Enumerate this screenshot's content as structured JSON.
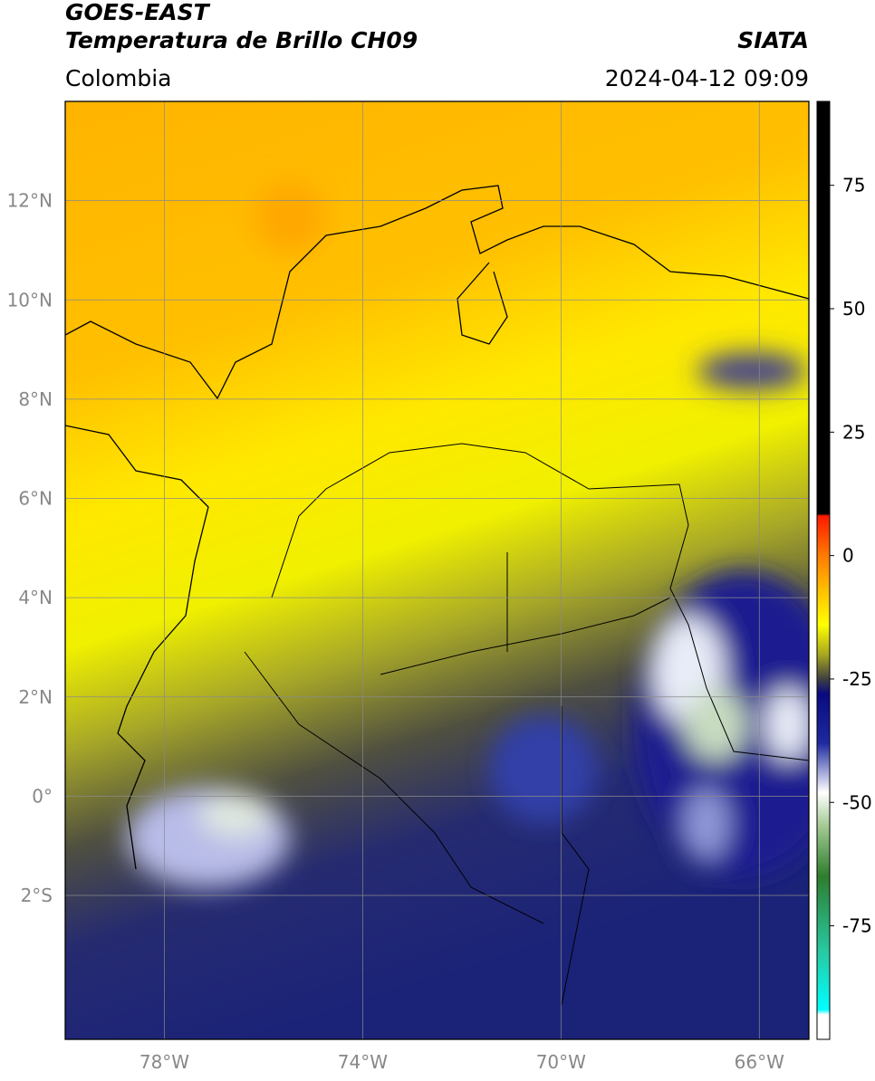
{
  "header": {
    "title": "GOES-EAST",
    "subtitle": "Temperatura de Brillo CH09",
    "agency": "SIATA",
    "region": "Colombia",
    "datetime": "2024-04-12 09:09"
  },
  "map": {
    "xlim": [
      -80,
      -65
    ],
    "ylim": [
      -4.9,
      14
    ],
    "xticks": [
      {
        "value": -78,
        "label": "78°W"
      },
      {
        "value": -74,
        "label": "74°W"
      },
      {
        "value": -70,
        "label": "70°W"
      },
      {
        "value": -66,
        "label": "66°W"
      }
    ],
    "yticks": [
      {
        "value": 12,
        "label": "12°N"
      },
      {
        "value": 10,
        "label": "10°N"
      },
      {
        "value": 8,
        "label": "8°N"
      },
      {
        "value": 6,
        "label": "6°N"
      },
      {
        "value": 4,
        "label": "4°N"
      },
      {
        "value": 2,
        "label": "2°N"
      },
      {
        "value": 0,
        "label": "0°"
      },
      {
        "value": -2,
        "label": "2°S"
      }
    ],
    "grid": true,
    "grid_color": "#8a8a8a"
  },
  "colorbar": {
    "lim": [
      -98,
      92
    ],
    "ticks": [
      75,
      50,
      25,
      0,
      -25,
      -50,
      -75
    ],
    "stops": [
      {
        "value": 92,
        "color": "#000000"
      },
      {
        "value": 8.5,
        "color": "#000000"
      },
      {
        "value": 8,
        "color": "#ff1a00"
      },
      {
        "value": 0,
        "color": "#ff7a00"
      },
      {
        "value": -8,
        "color": "#ffc800"
      },
      {
        "value": -14,
        "color": "#ffff00"
      },
      {
        "value": -20,
        "color": "#a8a820"
      },
      {
        "value": -25,
        "color": "#404040"
      },
      {
        "value": -28,
        "color": "#0a0a80"
      },
      {
        "value": -38,
        "color": "#1e2aa0"
      },
      {
        "value": -48,
        "color": "#ffffff"
      },
      {
        "value": -55,
        "color": "#a0c890"
      },
      {
        "value": -65,
        "color": "#2e7d2e"
      },
      {
        "value": -80,
        "color": "#28c8a0"
      },
      {
        "value": -92,
        "color": "#00ffff"
      },
      {
        "value": -93,
        "color": "#ffffff"
      },
      {
        "value": -98,
        "color": "#ffffff"
      }
    ]
  }
}
